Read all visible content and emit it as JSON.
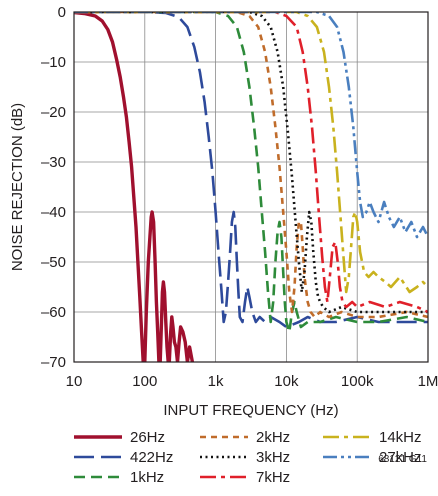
{
  "chart_data": {
    "type": "line",
    "title": "",
    "xlabel": "INPUT FREQUENCY (Hz)",
    "ylabel": "NOISE REJECTION (dB)",
    "xscale": "log",
    "xlim": [
      10,
      1000000
    ],
    "ylim": [
      -70,
      0
    ],
    "x_tick_values": [
      10,
      100,
      1000,
      10000,
      100000,
      1000000
    ],
    "x_tick_labels": [
      "10",
      "100",
      "1k",
      "10k",
      "100k",
      "1M"
    ],
    "y_tick_values": [
      0,
      -10,
      -20,
      -30,
      -40,
      -50,
      -60,
      -70
    ],
    "y_tick_labels": [
      "0",
      "–10",
      "–20",
      "–30",
      "–40",
      "–50",
      "–60",
      "–70"
    ],
    "grid": true,
    "legend_position": "bottom",
    "figure_id": "68121 G11",
    "series": [
      {
        "name": "26Hz",
        "color": "#a0102e",
        "dash": "solid",
        "points": [
          [
            10,
            -0.1
          ],
          [
            14,
            -0.3
          ],
          [
            20,
            -0.8
          ],
          [
            25,
            -1.8
          ],
          [
            30,
            -3.5
          ],
          [
            35,
            -6
          ],
          [
            40,
            -9.5
          ],
          [
            45,
            -13
          ],
          [
            50,
            -17
          ],
          [
            55,
            -21
          ],
          [
            60,
            -26
          ],
          [
            65,
            -31
          ],
          [
            70,
            -37
          ],
          [
            75,
            -43
          ],
          [
            80,
            -50
          ],
          [
            85,
            -57
          ],
          [
            90,
            -64
          ],
          [
            95,
            -70
          ],
          [
            100,
            -70
          ],
          [
            105,
            -60
          ],
          [
            112,
            -50
          ],
          [
            118,
            -45
          ],
          [
            123,
            -41
          ],
          [
            127,
            -40
          ],
          [
            133,
            -42
          ],
          [
            140,
            -50
          ],
          [
            146,
            -58
          ],
          [
            152,
            -64
          ],
          [
            158,
            -70
          ],
          [
            165,
            -70
          ],
          [
            172,
            -62
          ],
          [
            177,
            -56
          ],
          [
            183,
            -54
          ],
          [
            190,
            -56
          ],
          [
            198,
            -62
          ],
          [
            206,
            -67
          ],
          [
            214,
            -70
          ],
          [
            222,
            -70
          ],
          [
            232,
            -64
          ],
          [
            241,
            -61
          ],
          [
            250,
            -63
          ],
          [
            262,
            -66
          ],
          [
            275,
            -67
          ],
          [
            290,
            -70
          ],
          [
            305,
            -66
          ],
          [
            320,
            -63
          ],
          [
            345,
            -64
          ],
          [
            372,
            -66
          ],
          [
            400,
            -70
          ],
          [
            430,
            -67
          ],
          [
            470,
            -70
          ]
        ]
      },
      {
        "name": "422Hz",
        "color": "#2e4a9b",
        "dash": "longdash",
        "points": [
          [
            10,
            0
          ],
          [
            100,
            0
          ],
          [
            200,
            -0.2
          ],
          [
            300,
            -1
          ],
          [
            400,
            -3
          ],
          [
            500,
            -7
          ],
          [
            600,
            -12
          ],
          [
            700,
            -18
          ],
          [
            800,
            -25
          ],
          [
            900,
            -32
          ],
          [
            1000,
            -40
          ],
          [
            1100,
            -48
          ],
          [
            1200,
            -55
          ],
          [
            1300,
            -62
          ],
          [
            1400,
            -60
          ],
          [
            1500,
            -54
          ],
          [
            1600,
            -48
          ],
          [
            1700,
            -42
          ],
          [
            1800,
            -40
          ],
          [
            1900,
            -43
          ],
          [
            2000,
            -50
          ],
          [
            2100,
            -56
          ],
          [
            2200,
            -61
          ],
          [
            2400,
            -62
          ],
          [
            2600,
            -58
          ],
          [
            2800,
            -55
          ],
          [
            3000,
            -57
          ],
          [
            3300,
            -60
          ],
          [
            3700,
            -62
          ],
          [
            4200,
            -61
          ],
          [
            5000,
            -62
          ],
          [
            6000,
            -61
          ],
          [
            8000,
            -62
          ],
          [
            10000,
            -63
          ],
          [
            15000,
            -62
          ],
          [
            20000,
            -61
          ],
          [
            30000,
            -62
          ],
          [
            50000,
            -62
          ],
          [
            100000,
            -61
          ],
          [
            200000,
            -62
          ],
          [
            500000,
            -62
          ],
          [
            1000000,
            -62
          ]
        ]
      },
      {
        "name": "1kHz",
        "color": "#2e8b3a",
        "dash": "dashed",
        "points": [
          [
            10,
            0
          ],
          [
            1000,
            0
          ],
          [
            1500,
            -0.8
          ],
          [
            2000,
            -3
          ],
          [
            2500,
            -8
          ],
          [
            3000,
            -15
          ],
          [
            3500,
            -23
          ],
          [
            4000,
            -31
          ],
          [
            4500,
            -40
          ],
          [
            5000,
            -48
          ],
          [
            5500,
            -56
          ],
          [
            6000,
            -62
          ],
          [
            6500,
            -58
          ],
          [
            7000,
            -50
          ],
          [
            7500,
            -44
          ],
          [
            8000,
            -42
          ],
          [
            8500,
            -45
          ],
          [
            9000,
            -52
          ],
          [
            9500,
            -58
          ],
          [
            10000,
            -62
          ],
          [
            11000,
            -64
          ],
          [
            12000,
            -60
          ],
          [
            13000,
            -58
          ],
          [
            14000,
            -60
          ],
          [
            16000,
            -63
          ],
          [
            20000,
            -62
          ],
          [
            30000,
            -62
          ],
          [
            50000,
            -61
          ],
          [
            100000,
            -62
          ],
          [
            200000,
            -62
          ],
          [
            500000,
            -61
          ],
          [
            1000000,
            -62
          ]
        ]
      },
      {
        "name": "2kHz",
        "color": "#c06c2b",
        "dash": "shortdash",
        "points": [
          [
            10,
            0
          ],
          [
            2000,
            0
          ],
          [
            3000,
            -0.8
          ],
          [
            4000,
            -3
          ],
          [
            5000,
            -8
          ],
          [
            6000,
            -15
          ],
          [
            7000,
            -23
          ],
          [
            8000,
            -31
          ],
          [
            9000,
            -40
          ],
          [
            10000,
            -48
          ],
          [
            11000,
            -56
          ],
          [
            12000,
            -60
          ],
          [
            13000,
            -55
          ],
          [
            14000,
            -47
          ],
          [
            15000,
            -42
          ],
          [
            16000,
            -42
          ],
          [
            17000,
            -47
          ],
          [
            18000,
            -53
          ],
          [
            20000,
            -58
          ],
          [
            22000,
            -60
          ],
          [
            25000,
            -61
          ],
          [
            30000,
            -60
          ],
          [
            40000,
            -61
          ],
          [
            60000,
            -60
          ],
          [
            100000,
            -61
          ],
          [
            200000,
            -61
          ],
          [
            500000,
            -60
          ],
          [
            1000000,
            -61
          ]
        ]
      },
      {
        "name": "3kHz",
        "color": "#111111",
        "dash": "dotted",
        "points": [
          [
            10,
            0
          ],
          [
            3000,
            0
          ],
          [
            4500,
            -0.8
          ],
          [
            6000,
            -3
          ],
          [
            7500,
            -8
          ],
          [
            9000,
            -15
          ],
          [
            10500,
            -24
          ],
          [
            12000,
            -33
          ],
          [
            13500,
            -42
          ],
          [
            15000,
            -50
          ],
          [
            16500,
            -56
          ],
          [
            18000,
            -52
          ],
          [
            19500,
            -45
          ],
          [
            21000,
            -40
          ],
          [
            22500,
            -42
          ],
          [
            24000,
            -48
          ],
          [
            26000,
            -54
          ],
          [
            28000,
            -57
          ],
          [
            30000,
            -58
          ],
          [
            33000,
            -59
          ],
          [
            40000,
            -60
          ],
          [
            60000,
            -59
          ],
          [
            100000,
            -60
          ],
          [
            200000,
            -60
          ],
          [
            500000,
            -60
          ],
          [
            1000000,
            -60
          ]
        ]
      },
      {
        "name": "7kHz",
        "color": "#e0202a",
        "dash": "dashdot",
        "points": [
          [
            10,
            0
          ],
          [
            7000,
            0
          ],
          [
            10000,
            -0.8
          ],
          [
            14000,
            -3
          ],
          [
            17000,
            -8
          ],
          [
            20000,
            -15
          ],
          [
            23000,
            -23
          ],
          [
            26000,
            -32
          ],
          [
            29000,
            -41
          ],
          [
            32000,
            -49
          ],
          [
            35000,
            -55
          ],
          [
            38000,
            -58
          ],
          [
            41000,
            -53
          ],
          [
            45000,
            -47
          ],
          [
            49000,
            -46
          ],
          [
            53000,
            -50
          ],
          [
            57000,
            -55
          ],
          [
            62000,
            -58
          ],
          [
            70000,
            -59
          ],
          [
            85000,
            -58
          ],
          [
            100000,
            -59
          ],
          [
            150000,
            -58
          ],
          [
            250000,
            -59
          ],
          [
            400000,
            -58
          ],
          [
            700000,
            -59
          ],
          [
            1000000,
            -60
          ]
        ]
      },
      {
        "name": "14kHz",
        "color": "#c9b21e",
        "dash": "dashdot",
        "points": [
          [
            10,
            0
          ],
          [
            14000,
            0
          ],
          [
            20000,
            -0.8
          ],
          [
            27000,
            -3
          ],
          [
            34000,
            -8
          ],
          [
            40000,
            -15
          ],
          [
            46000,
            -23
          ],
          [
            52000,
            -32
          ],
          [
            58000,
            -41
          ],
          [
            64000,
            -49
          ],
          [
            70000,
            -56
          ],
          [
            76000,
            -53
          ],
          [
            82000,
            -47
          ],
          [
            88000,
            -41
          ],
          [
            94000,
            -40
          ],
          [
            100000,
            -42
          ],
          [
            110000,
            -48
          ],
          [
            125000,
            -52
          ],
          [
            145000,
            -53
          ],
          [
            170000,
            -52
          ],
          [
            200000,
            -53
          ],
          [
            250000,
            -54
          ],
          [
            300000,
            -55
          ],
          [
            400000,
            -53
          ],
          [
            550000,
            -56
          ],
          [
            700000,
            -55
          ],
          [
            850000,
            -54
          ],
          [
            1000000,
            -55
          ]
        ]
      },
      {
        "name": "27kHz",
        "color": "#4a7fbf",
        "dash": "dashdotdot",
        "points": [
          [
            10,
            0
          ],
          [
            27000,
            0
          ],
          [
            40000,
            -0.8
          ],
          [
            52000,
            -3
          ],
          [
            64000,
            -8
          ],
          [
            76000,
            -15
          ],
          [
            88000,
            -23
          ],
          [
            100000,
            -32
          ],
          [
            110000,
            -38
          ],
          [
            120000,
            -41
          ],
          [
            135000,
            -40
          ],
          [
            150000,
            -38
          ],
          [
            170000,
            -40
          ],
          [
            200000,
            -42
          ],
          [
            240000,
            -38
          ],
          [
            280000,
            -41
          ],
          [
            330000,
            -43
          ],
          [
            400000,
            -41
          ],
          [
            480000,
            -44
          ],
          [
            580000,
            -42
          ],
          [
            700000,
            -45
          ],
          [
            850000,
            -43
          ],
          [
            1000000,
            -45
          ]
        ]
      }
    ]
  }
}
